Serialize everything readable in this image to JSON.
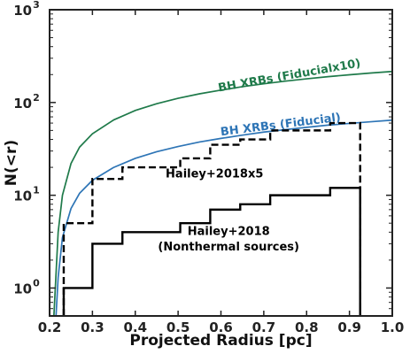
{
  "chart_data": {
    "type": "line",
    "xlabel": "Projected Radius [pc]",
    "ylabel": "N(<r)",
    "xlim": [
      0.2,
      1.0
    ],
    "ylim": [
      0.5,
      1000
    ],
    "yscale": "log",
    "x_ticks": [
      0.2,
      0.3,
      0.4,
      0.5,
      0.6,
      0.7,
      0.8,
      0.9,
      1.0
    ],
    "x_tick_labels": [
      "0.2",
      "0.3",
      "0.4",
      "0.5",
      "0.6",
      "0.7",
      "0.8",
      "0.9",
      "1.0"
    ],
    "y_ticks": [
      1,
      10,
      100,
      1000
    ],
    "y_tick_exponents": [
      "0",
      "1",
      "2",
      "3"
    ],
    "grid": false,
    "series": [
      {
        "name": "BH XRBs (Fiducialx10)",
        "style": "solid",
        "color": "#1f7a4a",
        "x": [
          0.21,
          0.22,
          0.23,
          0.25,
          0.27,
          0.3,
          0.35,
          0.4,
          0.45,
          0.5,
          0.55,
          0.6,
          0.65,
          0.7,
          0.75,
          0.8,
          0.85,
          0.9,
          0.95,
          1.0
        ],
        "y": [
          0.5,
          4.0,
          10.0,
          22.0,
          33.0,
          46.0,
          65.0,
          82.0,
          97.0,
          111.0,
          124.0,
          136.0,
          148.0,
          159.0,
          170.0,
          180.0,
          190.0,
          199.0,
          208.0,
          216.0
        ]
      },
      {
        "name": "BH XRBs (Fiducial)",
        "style": "solid",
        "color": "#2e75b6",
        "x": [
          0.215,
          0.22,
          0.23,
          0.25,
          0.27,
          0.3,
          0.35,
          0.4,
          0.45,
          0.5,
          0.55,
          0.6,
          0.65,
          0.7,
          0.75,
          0.8,
          0.85,
          0.9,
          0.95,
          1.0
        ],
        "y": [
          0.5,
          1.3,
          3.5,
          7.2,
          10.5,
          14.5,
          20.0,
          25.0,
          29.5,
          33.5,
          37.5,
          41.0,
          44.5,
          48.0,
          51.0,
          54.0,
          57.0,
          59.5,
          62.0,
          64.5
        ]
      },
      {
        "name": "Hailey+2018x5",
        "style": "dashed-step",
        "color": "#000000",
        "x": [
          0.233,
          0.233,
          0.3,
          0.3,
          0.37,
          0.37,
          0.505,
          0.505,
          0.575,
          0.575,
          0.645,
          0.645,
          0.715,
          0.715,
          0.855,
          0.855,
          0.925,
          0.925
        ],
        "y": [
          0.5,
          5,
          5,
          15,
          15,
          20,
          20,
          25,
          25,
          35,
          35,
          40,
          40,
          50,
          50,
          60,
          60,
          0.5
        ]
      },
      {
        "name": "Hailey+2018 (Nonthermal sources)",
        "style": "solid-step",
        "color": "#000000",
        "x": [
          0.233,
          0.233,
          0.3,
          0.3,
          0.37,
          0.37,
          0.505,
          0.505,
          0.575,
          0.575,
          0.645,
          0.645,
          0.715,
          0.715,
          0.855,
          0.855,
          0.925,
          0.925
        ],
        "y": [
          0.5,
          1,
          1,
          3,
          3,
          4,
          4,
          5,
          5,
          7,
          7,
          8,
          8,
          10,
          10,
          12,
          12,
          0.5
        ]
      }
    ],
    "annotations": [
      {
        "text": "BH XRBs (Fiducialx10)",
        "x": 0.595,
        "y": 131,
        "rotate": -10,
        "color": "#1f7a4a",
        "anchor": "start"
      },
      {
        "text": "BH XRBs (Fiducial)",
        "x": 0.6,
        "y": 44,
        "rotate": -7,
        "color": "#2e75b6",
        "anchor": "start"
      },
      {
        "text": "Hailey+2018x5",
        "x": 0.585,
        "y": 15.5,
        "rotate": 0,
        "color": "#000000",
        "anchor": "middle"
      },
      {
        "text": "Hailey+2018",
        "x": 0.618,
        "y": 3.75,
        "rotate": 0,
        "color": "#000000",
        "anchor": "middle"
      },
      {
        "text": "(Nonthermal sources)",
        "x": 0.618,
        "y": 2.55,
        "rotate": 0,
        "color": "#000000",
        "anchor": "middle"
      }
    ]
  }
}
